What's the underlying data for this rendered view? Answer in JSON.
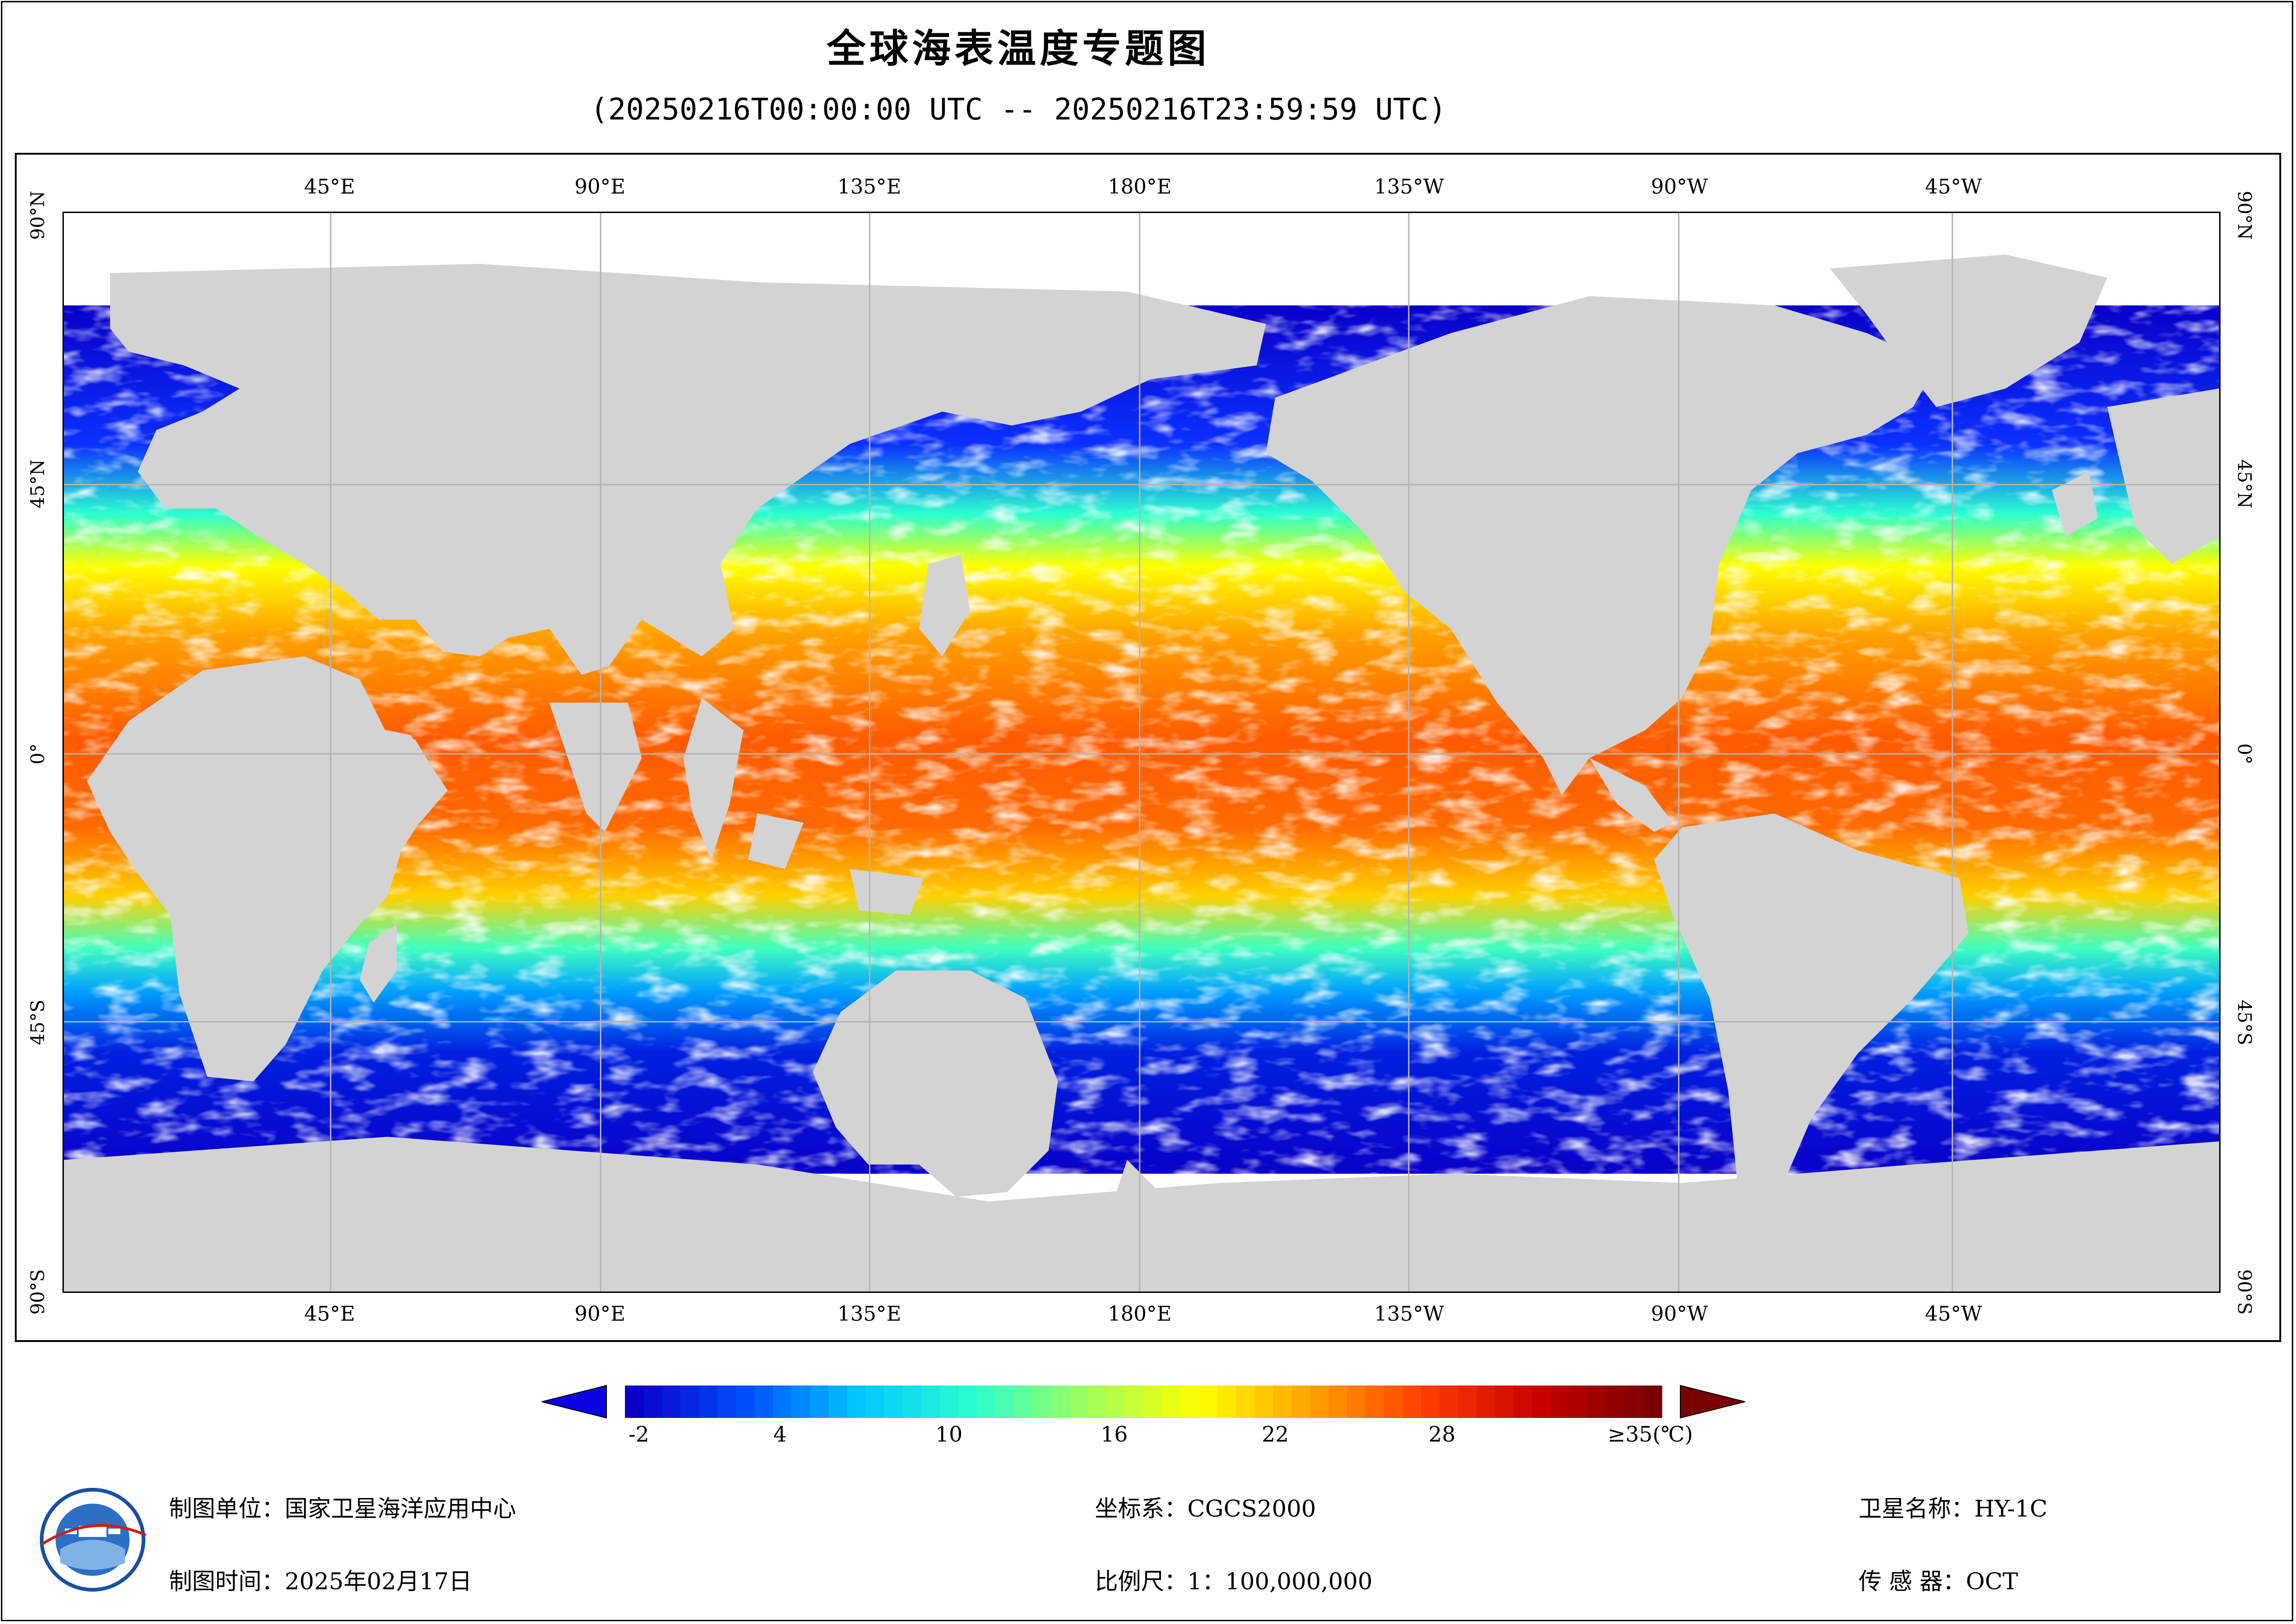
{
  "header": {
    "title": "全球海表温度专题图",
    "time_range": "(20250216T00:00:00 UTC -- 20250216T23:59:59 UTC)"
  },
  "map": {
    "longitude_labels": [
      "45°E",
      "90°E",
      "135°E",
      "180°E",
      "135°W",
      "90°W",
      "45°W"
    ],
    "latitude_labels": [
      "90°N",
      "45°N",
      "0°",
      "45°S",
      "90°S"
    ],
    "colors": {
      "land": "#d3d3d4",
      "no_data": "#ffffff",
      "grid": "#b4b4b4"
    }
  },
  "colorbar": {
    "ticks": [
      "-2",
      "4",
      "10",
      "16",
      "22",
      "28",
      "≥35(℃)"
    ],
    "tick_values": [
      -2,
      4,
      10,
      16,
      22,
      28,
      35
    ],
    "min": -3,
    "max": 35,
    "colors": [
      "#0a00c8",
      "#0050ff",
      "#00c8ff",
      "#2affd0",
      "#a0ff5a",
      "#ffff00",
      "#ffa000",
      "#ff3c00",
      "#c80000",
      "#780000"
    ]
  },
  "footer": {
    "producer_label": "制图单位：",
    "producer": "国家卫星海洋应用中心",
    "date_label": "制图时间：",
    "date": "2025年02月17日",
    "crs_label": "坐标系：",
    "crs": "CGCS2000",
    "scale_label": "比例尺：",
    "scale": "1：100,000,000",
    "satellite_label": "卫星名称：",
    "satellite": "HY-1C",
    "sensor_label": "传 感 器：",
    "sensor": "OCT"
  }
}
